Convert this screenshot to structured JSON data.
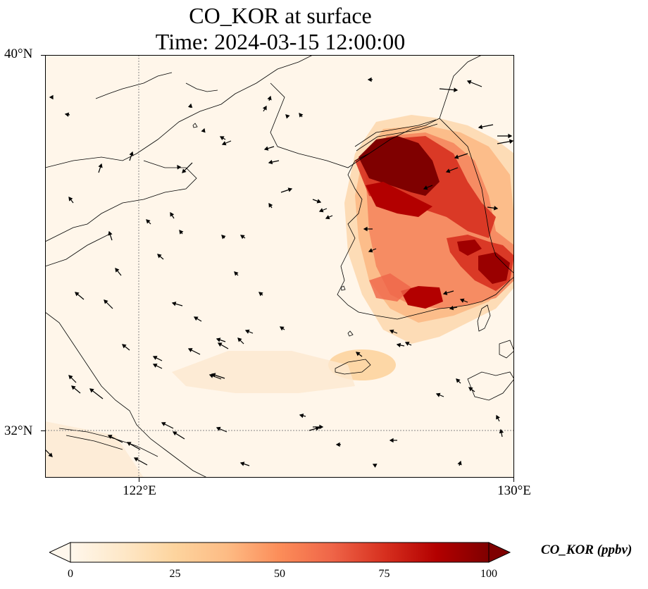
{
  "title": {
    "line1": "CO_KOR at surface",
    "line2": "Time: 2024-03-15 12:00:00"
  },
  "axes": {
    "lat_labels": [
      "40°N",
      "32°N"
    ],
    "lon_labels": [
      "122°E",
      "130°E"
    ]
  },
  "map": {
    "extent": {
      "lon_min": 120,
      "lon_max": 130,
      "lat_min": 31,
      "lat_max": 40
    },
    "gridlines": {
      "lons": [
        122
      ],
      "lats": [
        32
      ],
      "style": "dotted"
    },
    "colormap": "OrRd"
  },
  "colorbar": {
    "label": "CO_KOR (ppbv)",
    "min": 0,
    "max": 100,
    "ticks": [
      "0",
      "25",
      "50",
      "75",
      "100"
    ],
    "extend": "both",
    "colors": [
      "#fff7ec",
      "#fee8c8",
      "#fdd49e",
      "#fdbb84",
      "#fc8d59",
      "#ef6548",
      "#d7301f",
      "#b30000",
      "#7f0000"
    ]
  }
}
